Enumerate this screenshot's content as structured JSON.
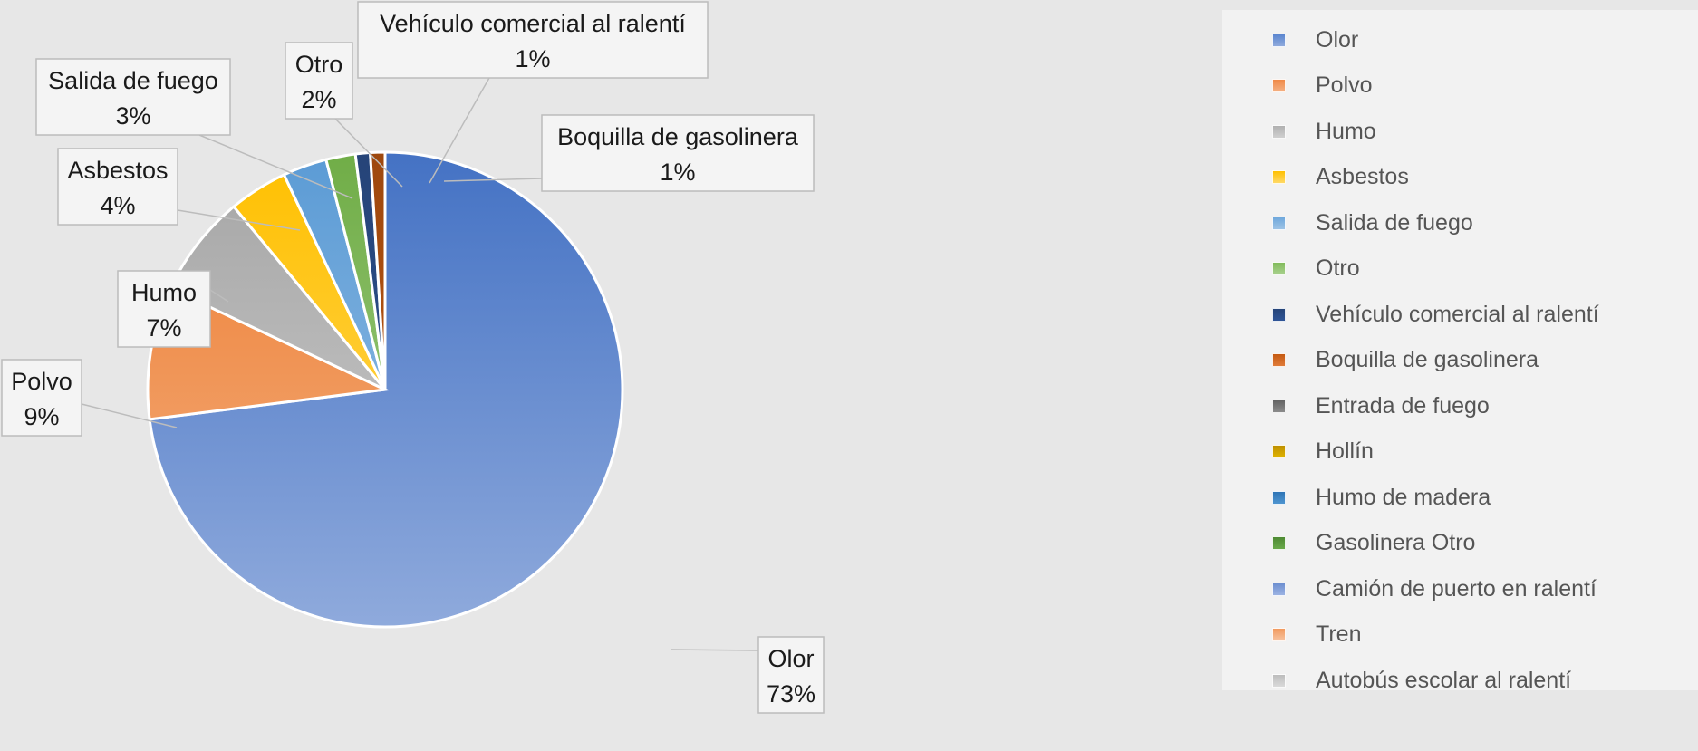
{
  "chart_data": {
    "type": "pie",
    "title": "",
    "slices": [
      {
        "name": "Olor",
        "value": 73,
        "label": "73%",
        "color": "#4472c4",
        "color_light": "#8faadc"
      },
      {
        "name": "Polvo",
        "value": 9,
        "label": "9%",
        "color": "#ed7d31",
        "color_light": "#f4b183"
      },
      {
        "name": "Humo",
        "value": 7,
        "label": "7%",
        "color": "#a5a5a5",
        "color_light": "#d0d0d0"
      },
      {
        "name": "Asbestos",
        "value": 4,
        "label": "4%",
        "color": "#ffc000",
        "color_light": "#ffd966"
      },
      {
        "name": "Salida de fuego",
        "value": 3,
        "label": "3%",
        "color": "#5b9bd5",
        "color_light": "#9dc3e6"
      },
      {
        "name": "Otro",
        "value": 2,
        "label": "2%",
        "color": "#70ad47",
        "color_light": "#a9d18e"
      },
      {
        "name": "Vehículo comercial al ralentí",
        "value": 1,
        "label": "1%",
        "color": "#264478",
        "color_light": "#2f5597"
      },
      {
        "name": "Boquilla de gasolinera",
        "value": 1,
        "label": "1%",
        "color": "#9e480e",
        "color_light": "#c55a11"
      }
    ],
    "legend_position": "right",
    "legend": [
      {
        "name": "Olor",
        "color": "#5b86cf",
        "color_light": "#8faadc"
      },
      {
        "name": "Polvo",
        "color": "#f08a47",
        "color_light": "#f4b183"
      },
      {
        "name": "Humo",
        "color": "#b0b0b0",
        "color_light": "#d0d0d0"
      },
      {
        "name": "Asbestos",
        "color": "#ffc000",
        "color_light": "#ffd966"
      },
      {
        "name": "Salida de fuego",
        "color": "#6fa8dc",
        "color_light": "#9dc3e6"
      },
      {
        "name": "Otro",
        "color": "#82bb5b",
        "color_light": "#a9d18e"
      },
      {
        "name": "Vehículo comercial al ralentí",
        "color": "#264478",
        "color_light": "#2f5597"
      },
      {
        "name": "Boquilla de gasolinera",
        "color": "#c55a11",
        "color_light": "#e07b39"
      },
      {
        "name": "Entrada de fuego",
        "color": "#636363",
        "color_light": "#8c8c8c"
      },
      {
        "name": "Hollín",
        "color": "#bf9000",
        "color_light": "#e0b400"
      },
      {
        "name": "Humo de madera",
        "color": "#2e75b6",
        "color_light": "#4f95d0"
      },
      {
        "name": "Gasolinera Otro",
        "color": "#4e8a33",
        "color_light": "#6aaa4a"
      },
      {
        "name": "Camión de puerto en ralentí",
        "color": "#6d8fd0",
        "color_light": "#9cb3e3"
      },
      {
        "name": "Tren",
        "color": "#f19a5e",
        "color_light": "#f7c3a0"
      },
      {
        "name": "Autobús escolar al ralentí",
        "color": "#bdbdbd",
        "color_light": "#dadada"
      }
    ]
  }
}
